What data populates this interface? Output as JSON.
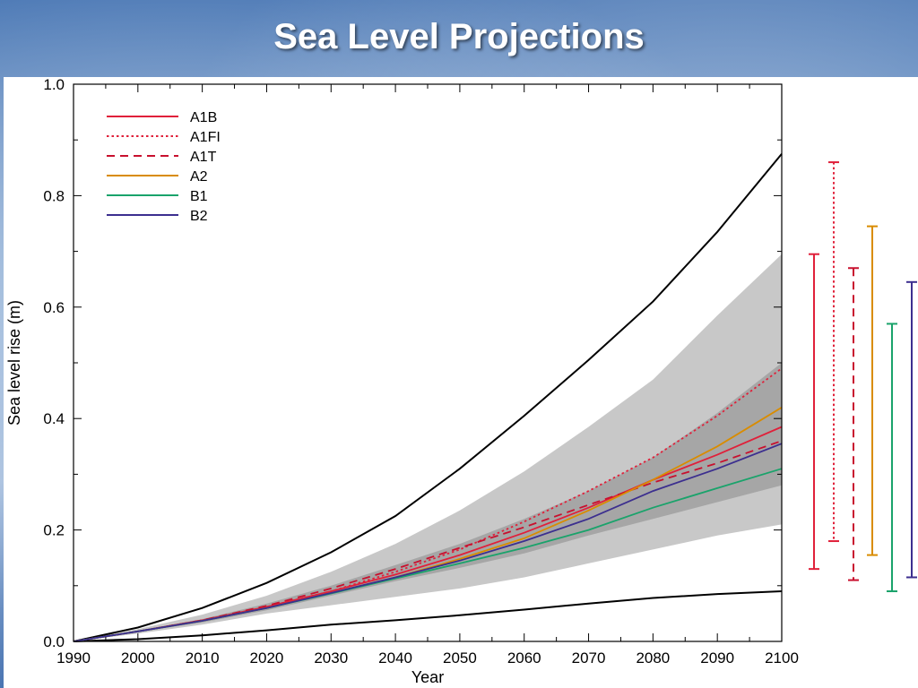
{
  "slide": {
    "title": "Sea Level Projections"
  },
  "chart_data": {
    "type": "line",
    "title": "Sea Level Projections",
    "xlabel": "Year",
    "ylabel": "Sea level rise (m)",
    "xlim": [
      1990,
      2100
    ],
    "ylim": [
      0,
      1.0
    ],
    "xticks": [
      "1990",
      "2000",
      "2010",
      "2020",
      "2030",
      "2040",
      "2050",
      "2060",
      "2070",
      "2080",
      "2090",
      "2100"
    ],
    "yticks": [
      "0.0",
      "0.2",
      "0.4",
      "0.6",
      "0.8",
      "1.0"
    ],
    "grid": false,
    "legend_position": "top-left",
    "x": [
      1990,
      2000,
      2010,
      2020,
      2030,
      2040,
      2050,
      2060,
      2070,
      2080,
      2090,
      2100
    ],
    "series": [
      {
        "name": "A1B",
        "color": "#e0203a",
        "dash": "solid",
        "values": [
          0,
          0.018,
          0.038,
          0.062,
          0.09,
          0.12,
          0.155,
          0.195,
          0.24,
          0.29,
          0.335,
          0.385
        ]
      },
      {
        "name": "A1FI",
        "color": "#e0203a",
        "dash": "dotted",
        "values": [
          0,
          0.018,
          0.038,
          0.062,
          0.09,
          0.125,
          0.165,
          0.215,
          0.27,
          0.33,
          0.405,
          0.49
        ]
      },
      {
        "name": "A1T",
        "color": "#c8102e",
        "dash": "dashed",
        "values": [
          0,
          0.018,
          0.038,
          0.064,
          0.095,
          0.13,
          0.168,
          0.205,
          0.245,
          0.285,
          0.32,
          0.36
        ]
      },
      {
        "name": "A2",
        "color": "#d98c00",
        "dash": "solid",
        "values": [
          0,
          0.018,
          0.037,
          0.06,
          0.087,
          0.115,
          0.148,
          0.185,
          0.235,
          0.29,
          0.35,
          0.42
        ]
      },
      {
        "name": "B1",
        "color": "#1aa36b",
        "dash": "solid",
        "values": [
          0,
          0.018,
          0.037,
          0.06,
          0.086,
          0.113,
          0.14,
          0.168,
          0.2,
          0.24,
          0.275,
          0.31
        ]
      },
      {
        "name": "B2",
        "color": "#3c2f8f",
        "dash": "solid",
        "values": [
          0,
          0.018,
          0.037,
          0.06,
          0.087,
          0.115,
          0.145,
          0.18,
          0.22,
          0.27,
          0.31,
          0.355
        ]
      }
    ],
    "envelope_lines": [
      {
        "color": "#000000",
        "values": [
          0,
          0.025,
          0.06,
          0.105,
          0.16,
          0.225,
          0.31,
          0.405,
          0.505,
          0.61,
          0.735,
          0.875
        ]
      },
      {
        "color": "#000000",
        "values": [
          0,
          0.004,
          0.011,
          0.02,
          0.03,
          0.038,
          0.047,
          0.057,
          0.068,
          0.078,
          0.085,
          0.09
        ]
      }
    ],
    "shaded_bands": [
      {
        "color": "#c8c8c8",
        "upper": [
          0,
          0.022,
          0.048,
          0.082,
          0.125,
          0.175,
          0.235,
          0.305,
          0.385,
          0.47,
          0.585,
          0.695
        ],
        "lower": [
          0,
          0.014,
          0.03,
          0.05,
          0.065,
          0.08,
          0.095,
          0.115,
          0.14,
          0.165,
          0.19,
          0.21
        ]
      },
      {
        "color": "#a6a6a6",
        "upper": [
          0,
          0.019,
          0.04,
          0.068,
          0.1,
          0.137,
          0.175,
          0.22,
          0.27,
          0.33,
          0.41,
          0.5
        ],
        "lower": [
          0,
          0.017,
          0.034,
          0.056,
          0.082,
          0.108,
          0.132,
          0.158,
          0.19,
          0.22,
          0.25,
          0.28
        ]
      }
    ],
    "range_bars": [
      {
        "name": "A1B",
        "color": "#e0203a",
        "dash": "solid",
        "low": 0.13,
        "high": 0.695
      },
      {
        "name": "A1FI",
        "color": "#e0203a",
        "dash": "dotted",
        "low": 0.18,
        "high": 0.86
      },
      {
        "name": "A1T",
        "color": "#c8102e",
        "dash": "dashed",
        "low": 0.11,
        "high": 0.67
      },
      {
        "name": "A2",
        "color": "#d98c00",
        "dash": "solid",
        "low": 0.155,
        "high": 0.745
      },
      {
        "name": "B1",
        "color": "#1aa36b",
        "dash": "solid",
        "low": 0.09,
        "high": 0.57
      },
      {
        "name": "B2",
        "color": "#3c2f8f",
        "dash": "solid",
        "low": 0.115,
        "high": 0.645
      }
    ]
  }
}
